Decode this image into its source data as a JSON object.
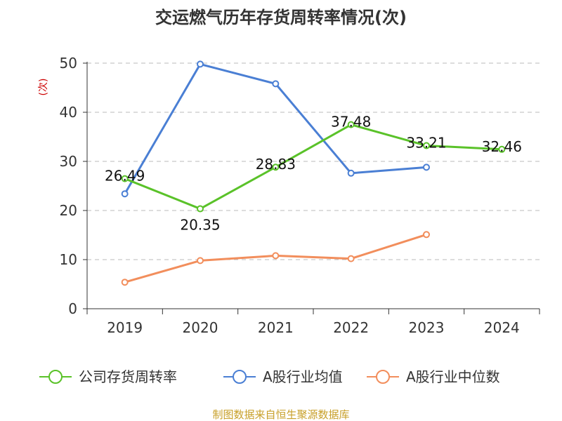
{
  "chart_data": {
    "type": "line",
    "title": "交运燃气历年存货周转率情况(次)",
    "xlabel": "",
    "ylabel": "(次)",
    "categories": [
      "2019",
      "2020",
      "2021",
      "2022",
      "2023",
      "2024"
    ],
    "ylim": [
      0,
      50
    ],
    "yticks": [
      0,
      10,
      20,
      30,
      40,
      50
    ],
    "grid": true,
    "legend_position": "bottom",
    "series": [
      {
        "name": "公司存货周转率",
        "color": "#5ac229",
        "values": [
          26.49,
          20.35,
          28.83,
          37.48,
          33.21,
          32.46
        ],
        "labels": [
          "26.49",
          "20.35",
          "28.83",
          "37.48",
          "33.21",
          "32.46"
        ]
      },
      {
        "name": "A股行业均值",
        "color": "#4a7fd4",
        "values": [
          23.4,
          49.8,
          45.8,
          27.6,
          28.8,
          null
        ]
      },
      {
        "name": "A股行业中位数",
        "color": "#f28e5c",
        "values": [
          5.4,
          9.8,
          10.8,
          10.2,
          15.1,
          null
        ]
      }
    ],
    "source": "制图数据来自恒生聚源数据库"
  }
}
